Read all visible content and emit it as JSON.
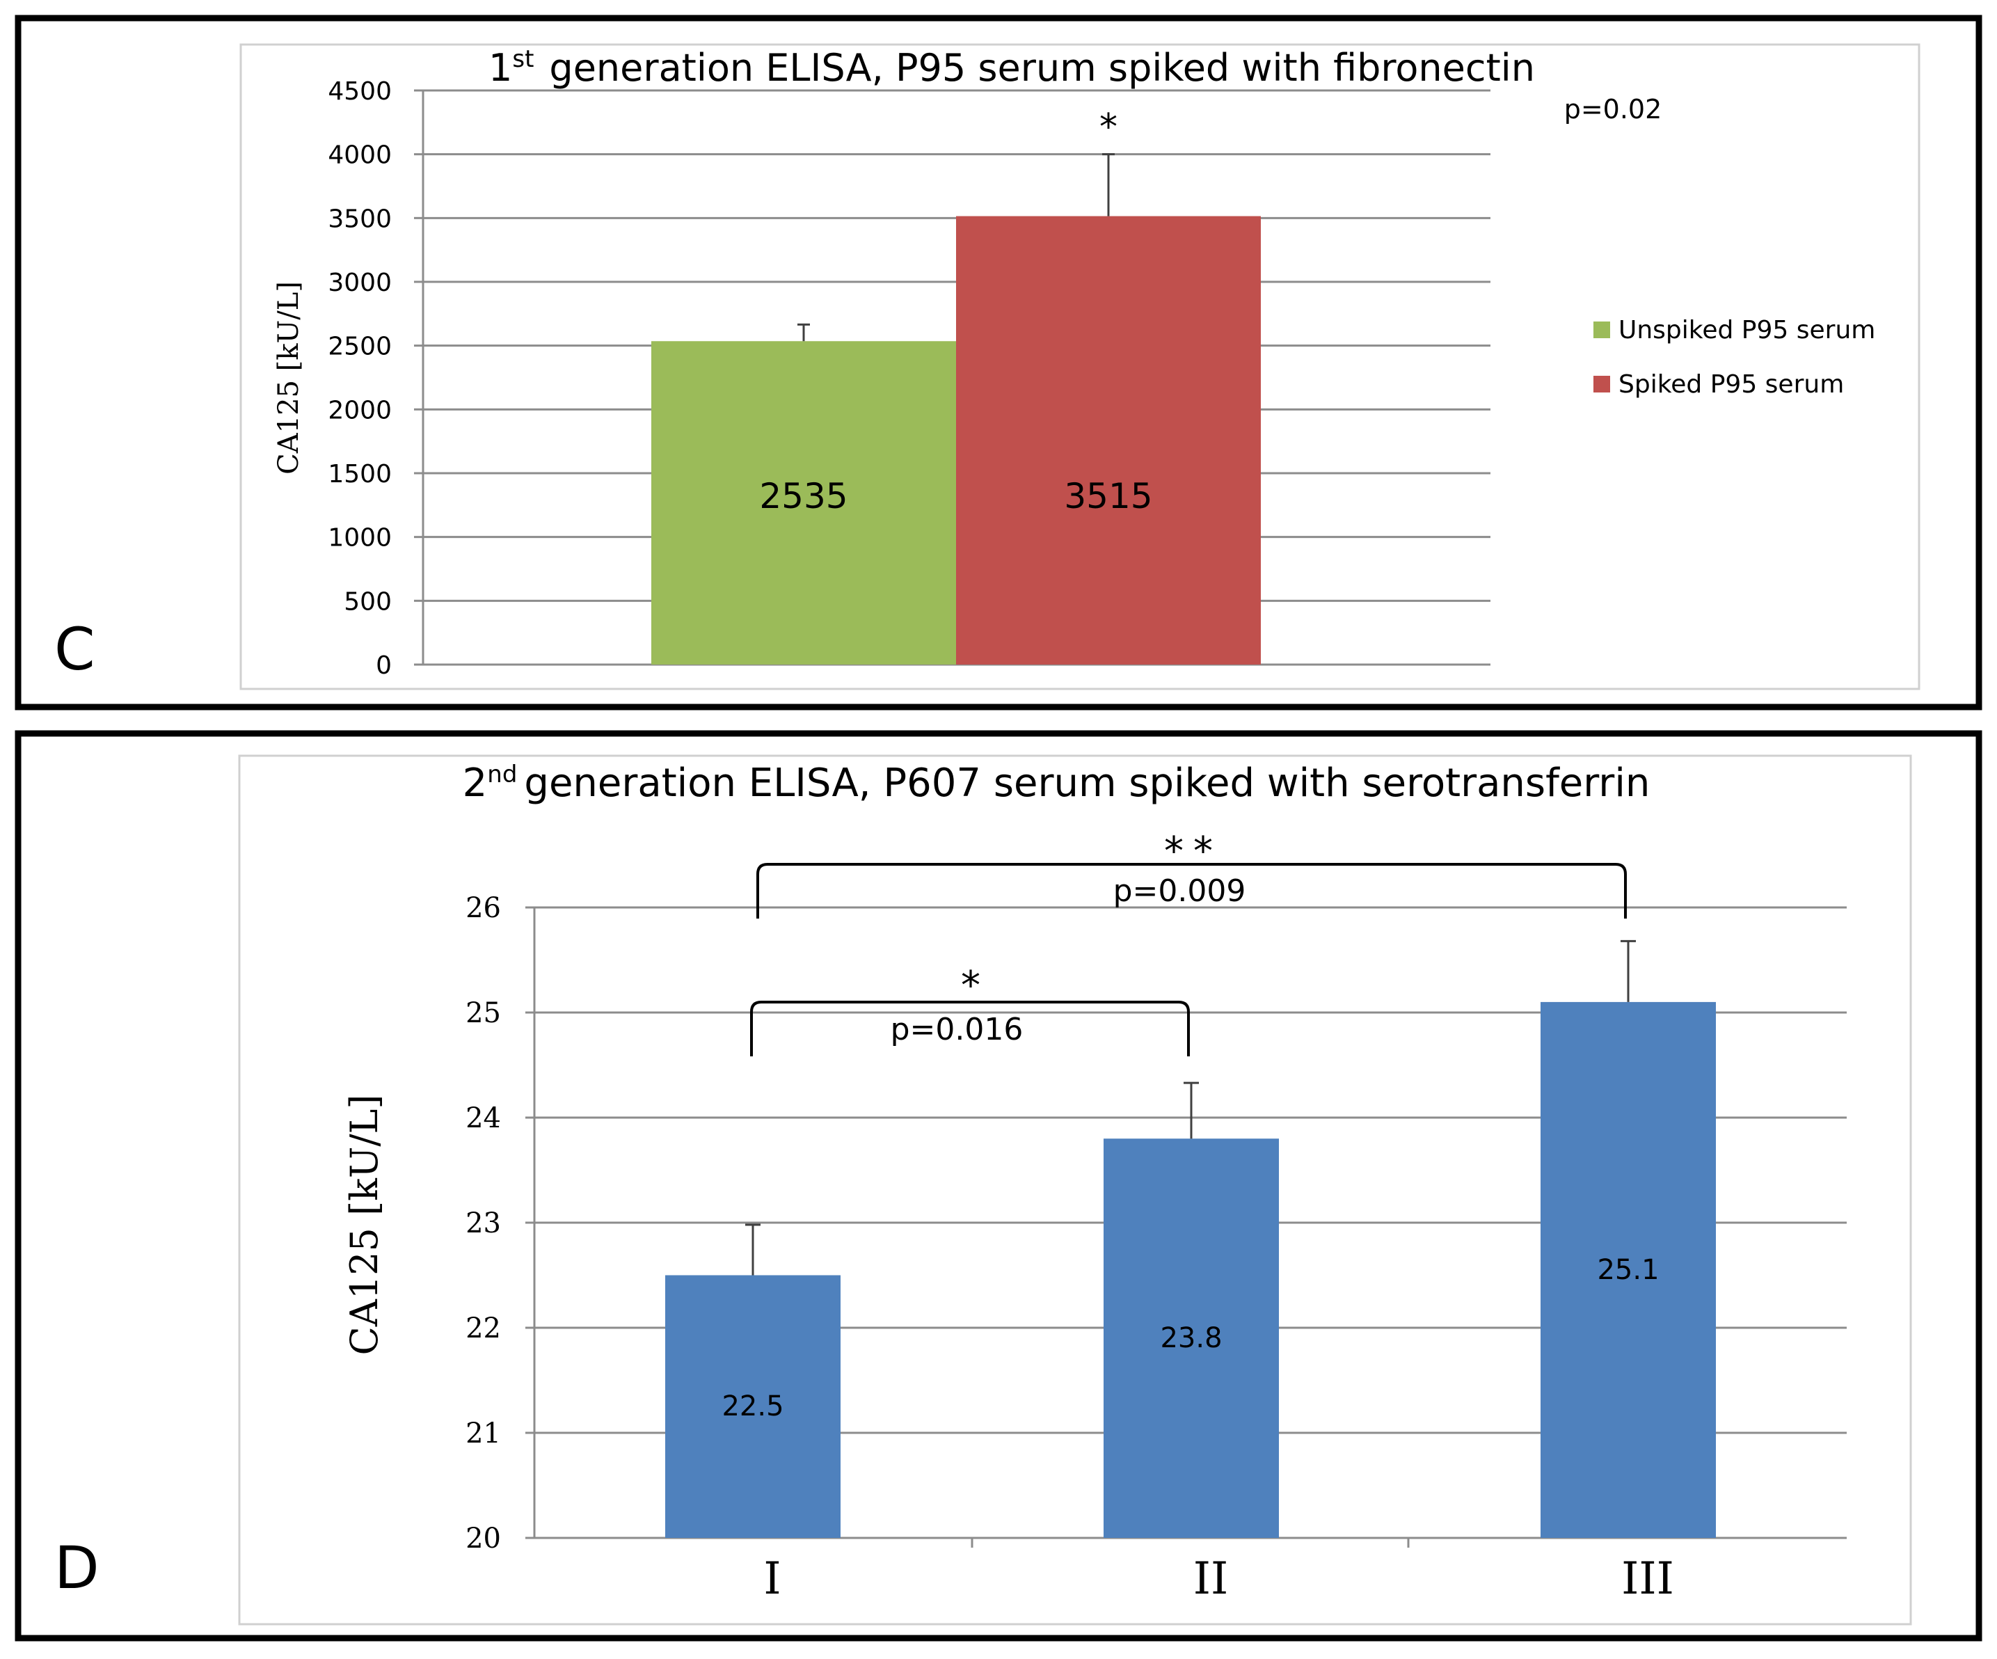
{
  "chart_data": [
    {
      "panel_label": "C",
      "type": "bar",
      "title_prefix": "1",
      "title_sup": "st",
      "title_rest": "generation ELISA, P95 serum spiked with fibronectin",
      "ylabel": "CA125 [kU/L]",
      "xlabel": "",
      "ylim": [
        0,
        4500
      ],
      "yticks": [
        0,
        500,
        1000,
        1500,
        2000,
        2500,
        3000,
        3500,
        4000,
        4500
      ],
      "grid": true,
      "legend_position": "right",
      "series": [
        {
          "name": "Unspiked P95 serum",
          "value": 2535,
          "label": "2535",
          "error_upper": 2665,
          "color": "#9bbb59"
        },
        {
          "name": "Spiked P95 serum",
          "value": 3515,
          "label": "3515",
          "error_upper": 4000,
          "color": "#c0504d"
        }
      ],
      "annotations": {
        "significance": "*",
        "pvalue": "p=0.02"
      }
    },
    {
      "panel_label": "D",
      "type": "bar",
      "title_prefix": "2",
      "title_sup": "nd",
      "title_rest": "generation ELISA, P607 serum spiked with serotransferrin",
      "ylabel": "CA125 [kU/L]",
      "xlabel": "",
      "ylim": [
        20,
        26
      ],
      "yticks": [
        20,
        21,
        22,
        23,
        24,
        25,
        26
      ],
      "grid": true,
      "categories": [
        "I",
        "II",
        "III"
      ],
      "values": [
        22.5,
        23.8,
        25.1
      ],
      "value_labels": [
        "22.5",
        "23.8",
        "25.1"
      ],
      "error_upper": [
        22.98,
        24.33,
        25.68
      ],
      "color": "#4f81bd",
      "brackets": [
        {
          "from": 0,
          "to": 1,
          "stars": "*",
          "pvalue": "p=0.016"
        },
        {
          "from": 0,
          "to": 2,
          "stars": "**",
          "pvalue": "p=0.009"
        }
      ]
    }
  ]
}
